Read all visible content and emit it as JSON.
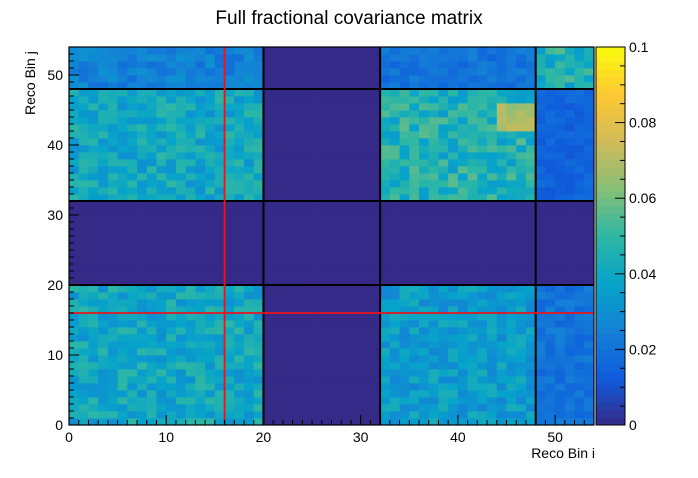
{
  "chart_data": {
    "type": "heatmap",
    "title": "Full fractional covariance matrix",
    "xlabel": "Reco Bin i",
    "ylabel": "Reco Bin j",
    "xlim": [
      0,
      54
    ],
    "ylim": [
      0,
      54
    ],
    "x_ticks": [
      0,
      10,
      20,
      30,
      40,
      50
    ],
    "y_ticks": [
      0,
      10,
      20,
      30,
      40,
      50
    ],
    "nbins": 54,
    "color_scale": {
      "min": 0,
      "max": 0.1,
      "ticks": [
        0,
        0.02,
        0.04,
        0.06,
        0.08,
        0.1
      ],
      "tick_labels": [
        "0",
        "0.02",
        "0.04",
        "0.06",
        "0.08",
        "0.1"
      ],
      "colormap": "parula",
      "stops": [
        "#352a87",
        "#0f5cdd",
        "#1481d6",
        "#06a4ca",
        "#2eb7a4",
        "#87bf77",
        "#d1bb59",
        "#fec832",
        "#f9fb0e"
      ]
    },
    "grid": false,
    "block_boundaries": [
      20,
      32,
      48
    ],
    "block_ranges": [
      [
        0,
        20
      ],
      [
        20,
        32
      ],
      [
        32,
        48
      ],
      [
        48,
        54
      ]
    ],
    "block_values": [
      [
        0.04,
        0.0,
        0.035,
        0.02
      ],
      [
        0.0,
        0.0,
        0.0,
        0.0
      ],
      [
        0.04,
        0.0,
        0.045,
        0.015
      ],
      [
        0.025,
        0.0,
        0.02,
        0.045
      ]
    ],
    "hotspot": {
      "x": [
        44,
        48
      ],
      "y": [
        42,
        46
      ],
      "value": 0.075
    },
    "highlight_bin": 16,
    "highlight_color": "#e8141b"
  }
}
